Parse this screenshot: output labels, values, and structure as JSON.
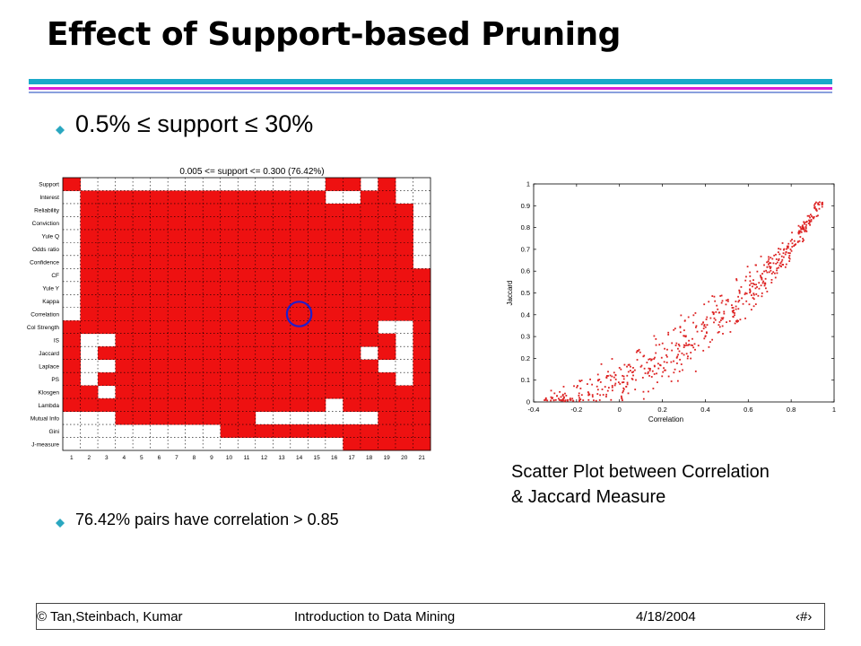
{
  "slide": {
    "title": "Effect of Support-based Pruning",
    "bullets": [
      {
        "text": "0.5% ≤ support ≤ 30%"
      },
      {
        "text": "76.42% pairs have correlation > 0.85"
      }
    ],
    "caption_line1": "Scatter Plot between Correlation",
    "caption_line2": "& Jaccard Measure",
    "footer": {
      "left": "© Tan,Steinbach, Kumar",
      "center": "Introduction to Data Mining",
      "date": "4/18/2004",
      "page": "‹#›"
    },
    "colors": {
      "rule_top": "#19a9c9",
      "rule_mid": "#d81fd8",
      "rule_bottom": "#8aa0dd",
      "bullet": "#2aa7c0",
      "heat_cell": "#ee1111",
      "scatter_point": "#dd2222",
      "circle": "#1f1fcc"
    }
  },
  "chart_data": [
    {
      "type": "heatmap",
      "title": "0.005 <= support <= 0.300 (76.42%)",
      "rows": [
        "Support",
        "Interest",
        "Reliability",
        "Conviction",
        "Yule Q",
        "Odds ratio",
        "Confidence",
        "CF",
        "Yule Y",
        "Kappa",
        "Correlation",
        "Col Strength",
        "IS",
        "Jaccard",
        "Laplace",
        "PS",
        "Klosgen",
        "Lambda",
        "Mutual Info",
        "Gini",
        "J-measure"
      ],
      "columns": [
        "1",
        "2",
        "3",
        "4",
        "5",
        "6",
        "7",
        "8",
        "9",
        "10",
        "11",
        "12",
        "13",
        "14",
        "15",
        "16",
        "17",
        "18",
        "19",
        "20",
        "21"
      ],
      "cells": [
        "100000000000000110100",
        "011111111111111001100",
        "011111111111111111110",
        "011111111111111111110",
        "011111111111111111110",
        "011111111111111111110",
        "011111111111111111110",
        "011111111111111111111",
        "011111111111111111111",
        "011111111111111111111",
        "011111111111111111111",
        "111111111111111111001",
        "100111111111111111101",
        "101111111111111110101",
        "100111111111111111001",
        "101111111111111111101",
        "110111111111111111111",
        "111111111111111011111",
        "000111111110000000111",
        "000000000111111111111",
        "000000000000000011111"
      ],
      "highlight": {
        "row": "Correlation",
        "column": "14"
      }
    },
    {
      "type": "scatter",
      "xlabel": "Correlation",
      "ylabel": "Jaccard",
      "xlim": [
        -0.4,
        1
      ],
      "ylim": [
        0,
        1
      ],
      "xticks": [
        "-0.4",
        "-0.2",
        "0",
        "0.2",
        "0.4",
        "0.6",
        "0.8",
        "1"
      ],
      "yticks": [
        "0",
        "0.1",
        "0.2",
        "0.3",
        "0.4",
        "0.5",
        "0.6",
        "0.7",
        "0.8",
        "0.9",
        "1"
      ],
      "trend": [
        {
          "x": -0.35,
          "y": 0.01
        },
        {
          "x": -0.2,
          "y": 0.03
        },
        {
          "x": 0.0,
          "y": 0.09
        },
        {
          "x": 0.2,
          "y": 0.19
        },
        {
          "x": 0.4,
          "y": 0.33
        },
        {
          "x": 0.6,
          "y": 0.5
        },
        {
          "x": 0.8,
          "y": 0.7
        },
        {
          "x": 0.95,
          "y": 0.93
        }
      ],
      "n_points": 600
    }
  ]
}
